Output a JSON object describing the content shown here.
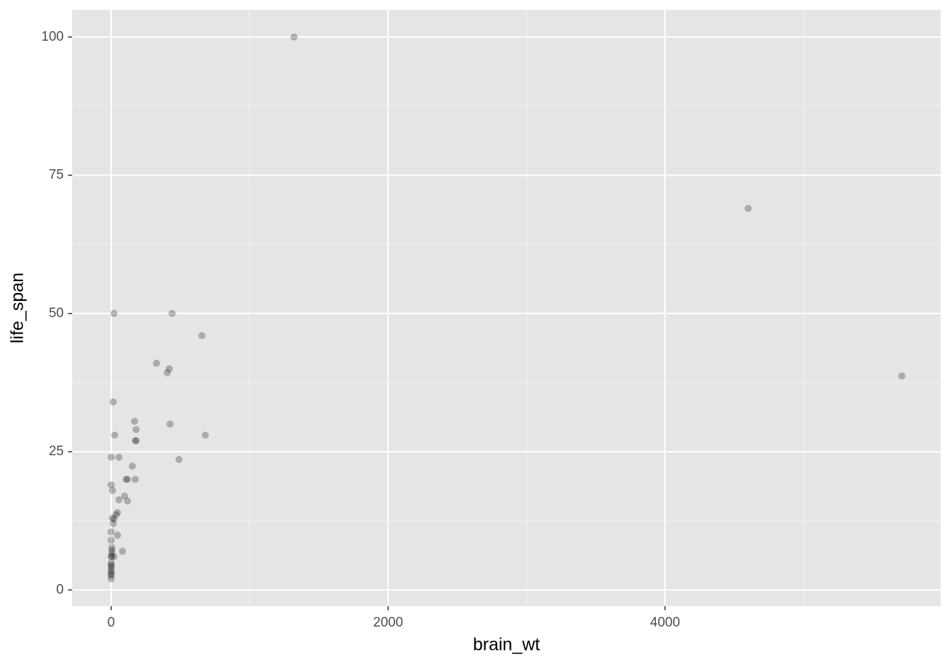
{
  "chart_data": {
    "type": "scatter",
    "x_label": "brain_wt",
    "y_label": "life_span",
    "xlim": [
      -281,
      5990
    ],
    "ylim": [
      -2.9,
      104.9
    ],
    "xticks": [
      0,
      2000,
      4000
    ],
    "yticks": [
      0,
      25,
      50,
      75,
      100
    ],
    "x_minor_grid": [
      1000,
      3000,
      5000
    ],
    "y_minor_grid": [
      12.5,
      37.5,
      62.5,
      87.5
    ],
    "grid": true,
    "color": "#000000",
    "alpha": 0.25,
    "series": [
      {
        "x": [
          1320,
          4600,
          5710,
          20,
          440,
          655,
          327,
          420,
          405,
          15,
          169,
          425,
          180,
          25,
          680,
          180,
          175,
          0,
          56,
          490,
          153,
          118,
          174,
          107,
          0,
          10,
          97,
          56,
          118,
          46,
          36,
          10,
          20,
          15,
          0,
          46,
          0,
          5,
          5,
          82,
          5,
          20,
          0,
          0.5,
          0.3,
          0.1,
          0.2,
          0.1,
          0.05,
          0.01,
          1,
          3
        ],
        "y": [
          100,
          69,
          38.7,
          50,
          50,
          46,
          41,
          40,
          39.3,
          34,
          30.5,
          30,
          29,
          28,
          28,
          27,
          27,
          24,
          24,
          23.6,
          22.4,
          20,
          20,
          20,
          19,
          18,
          17,
          16.3,
          16.1,
          14,
          13.6,
          13,
          12.8,
          12,
          10.5,
          9.9,
          9,
          7.7,
          7.2,
          7,
          6.7,
          6,
          6,
          4.9,
          4.5,
          3.7,
          3.3,
          2.9,
          2.6,
          2,
          4.2,
          6.1
        ]
      }
    ]
  }
}
